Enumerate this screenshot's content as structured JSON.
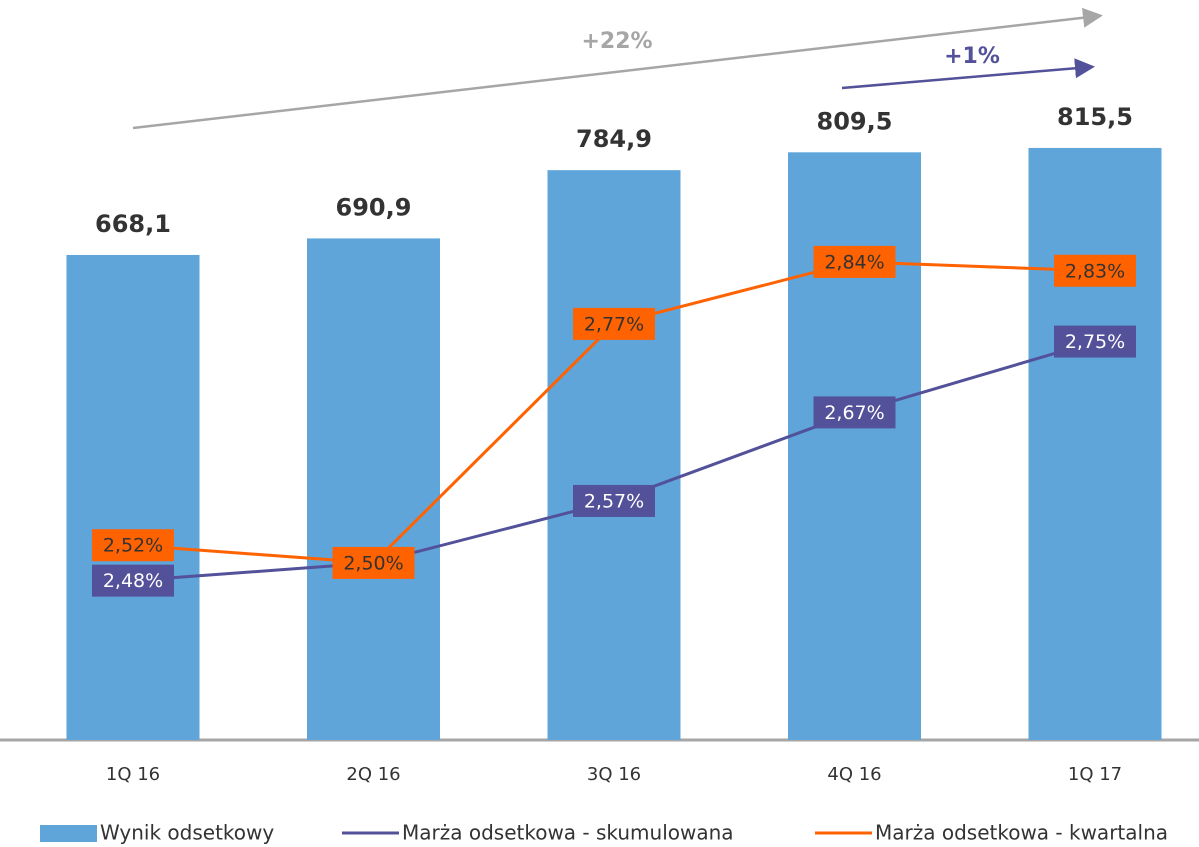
{
  "chart_data": {
    "type": "bar",
    "categories": [
      "1Q 16",
      "2Q 16",
      "3Q 16",
      "4Q 16",
      "1Q 17"
    ],
    "series": [
      {
        "name": "Wynik odsetkowy",
        "type": "bar",
        "color": "#5fa5da",
        "values": [
          668.1,
          690.9,
          784.9,
          809.5,
          815.5
        ],
        "value_labels": [
          "668,1",
          "690,9",
          "784,9",
          "809,5",
          "815,5"
        ]
      },
      {
        "name": "Marża odsetkowa - skumulowana",
        "type": "line",
        "axis": "y2",
        "color": "#525199",
        "values": [
          2.48,
          2.5,
          2.57,
          2.67,
          2.75
        ],
        "value_labels": [
          "2,48%",
          null,
          "2,57%",
          "2,67%",
          "2,75%"
        ]
      },
      {
        "name": "Marża odsetkowa - kwartalna",
        "type": "line",
        "axis": "y2",
        "color": "#ff6200",
        "values": [
          2.52,
          2.5,
          2.77,
          2.84,
          2.83
        ],
        "value_labels": [
          "2,52%",
          "2,50%",
          "2,77%",
          "2,84%",
          "2,83%"
        ]
      }
    ],
    "annotations": [
      "+22%",
      "+1%"
    ],
    "ylim": [
      0,
      1000
    ],
    "y2lim": [
      2.3,
      3.12
    ],
    "grid": false
  }
}
